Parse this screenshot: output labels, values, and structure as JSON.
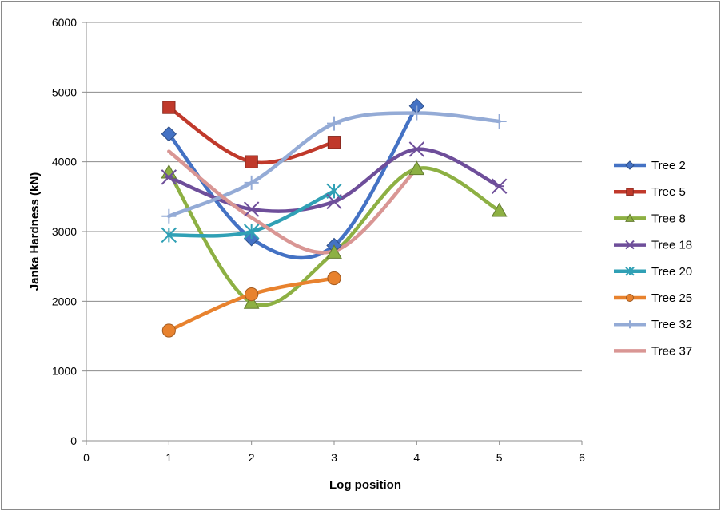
{
  "chart_data": {
    "type": "line",
    "title": "",
    "xlabel": "Log position",
    "ylabel": "Janka Hardness (kN)",
    "xlim": [
      0,
      6
    ],
    "ylim": [
      0,
      6000
    ],
    "xticks": [
      0,
      1,
      2,
      3,
      4,
      5,
      6
    ],
    "yticks": [
      0,
      1000,
      2000,
      3000,
      4000,
      5000,
      6000
    ],
    "grid": "horizontal",
    "smooth": true,
    "legend_position": "right",
    "series": [
      {
        "name": "Tree 2",
        "color": "#4472C4",
        "marker": "diamond",
        "points": [
          [
            1,
            4400
          ],
          [
            2,
            2900
          ],
          [
            3,
            2800
          ],
          [
            4,
            4800
          ]
        ]
      },
      {
        "name": "Tree 5",
        "color": "#C0392B",
        "marker": "square",
        "points": [
          [
            1,
            4780
          ],
          [
            2,
            4000
          ],
          [
            3,
            4280
          ]
        ]
      },
      {
        "name": "Tree 8",
        "color": "#8DB043",
        "marker": "triangle",
        "points": [
          [
            1,
            3850
          ],
          [
            2,
            1980
          ],
          [
            3,
            2700
          ],
          [
            4,
            3900
          ],
          [
            5,
            3300
          ]
        ]
      },
      {
        "name": "Tree 18",
        "color": "#6E4E9A",
        "marker": "xstar",
        "points": [
          [
            1,
            3780
          ],
          [
            2,
            3320
          ],
          [
            3,
            3430
          ],
          [
            4,
            4180
          ],
          [
            5,
            3650
          ]
        ]
      },
      {
        "name": "Tree 20",
        "color": "#30A0B5",
        "marker": "asterisk",
        "points": [
          [
            1,
            2950
          ],
          [
            2,
            3000
          ],
          [
            3,
            3580
          ]
        ]
      },
      {
        "name": "Tree 25",
        "color": "#E8822E",
        "marker": "circle",
        "points": [
          [
            1,
            1580
          ],
          [
            2,
            2100
          ],
          [
            3,
            2330
          ]
        ]
      },
      {
        "name": "Tree 32",
        "color": "#94ABD6",
        "marker": "plus",
        "points": [
          [
            1,
            3220
          ],
          [
            2,
            3700
          ],
          [
            3,
            4550
          ],
          [
            4,
            4700
          ],
          [
            5,
            4580
          ]
        ]
      },
      {
        "name": "Tree 37",
        "color": "#D99694",
        "marker": "none",
        "points": [
          [
            1,
            4150
          ],
          [
            2,
            3200
          ],
          [
            3,
            2720
          ],
          [
            4,
            3900
          ]
        ]
      }
    ]
  }
}
